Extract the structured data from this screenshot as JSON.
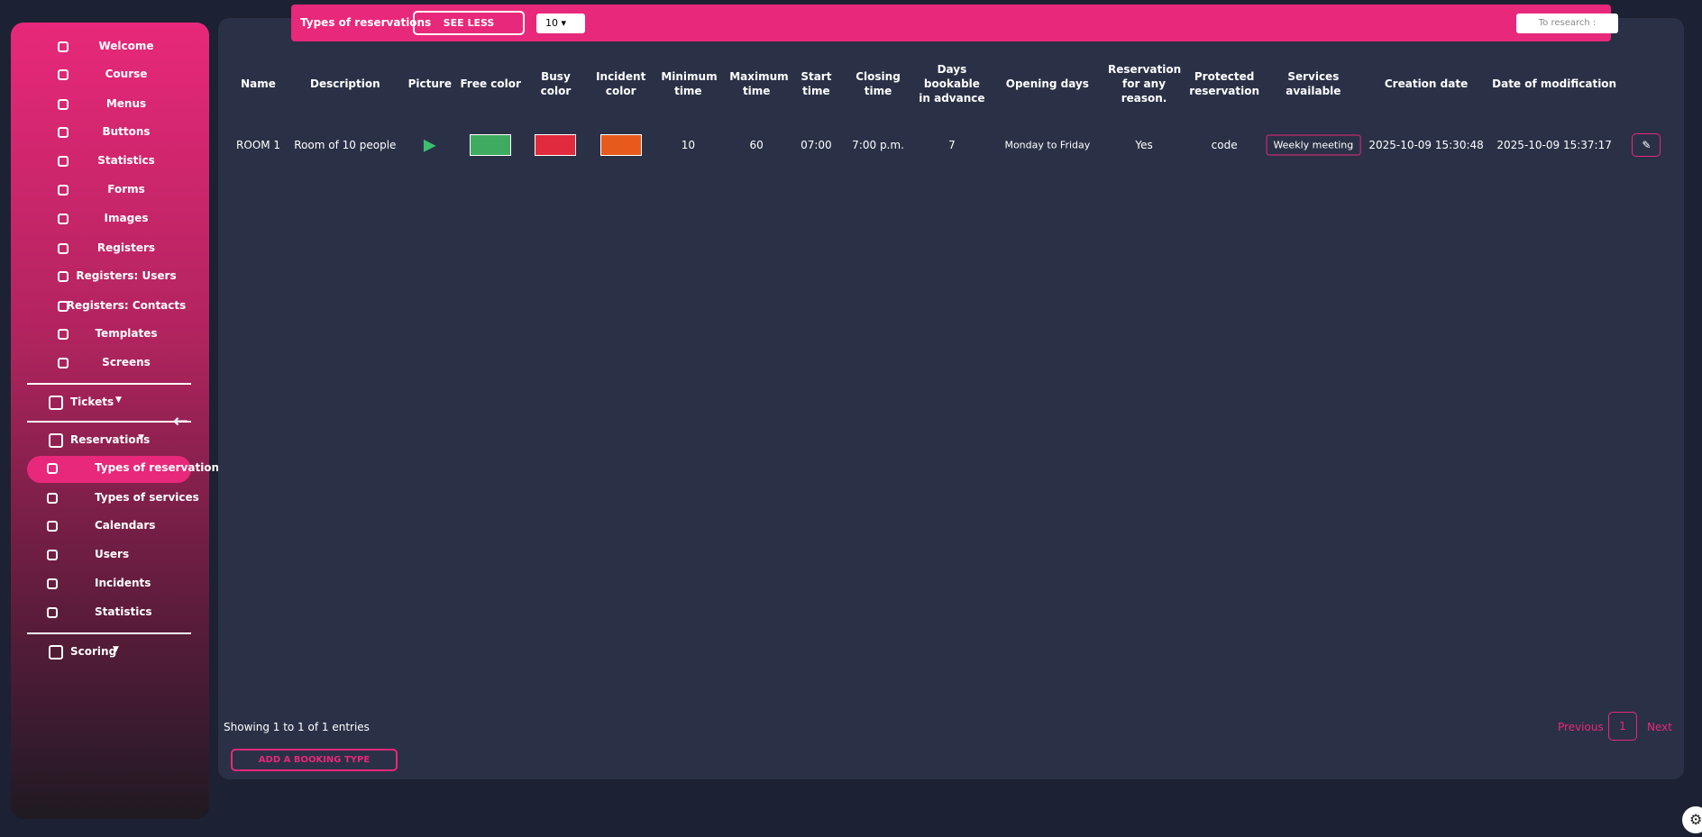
{
  "sidebar": {
    "items": [
      "Welcome",
      "Course",
      "Menus",
      "Buttons",
      "Statistics",
      "Forms",
      "Images",
      "Registers",
      "Registers: Users",
      "Registers: Contacts",
      "Templates",
      "Screens"
    ],
    "tickets": "Tickets",
    "reservations": "Reservations",
    "reservation_items": [
      "Types of reservations",
      "Types of services",
      "Calendars",
      "Users",
      "Incidents",
      "Statistics"
    ],
    "scoring": "Scoring"
  },
  "toolbar": {
    "title": "Types of reservations",
    "toggle": "SEE LESS",
    "page_size": "10",
    "search_placeholder": "To research :"
  },
  "table": {
    "headers": [
      "Name",
      "Description",
      "Picture",
      "Free color",
      "Busy color",
      "Incident color",
      "Minimum time",
      "Maximum time",
      "Start time",
      "Closing time",
      "Days bookable in advance",
      "Opening days",
      "Reservation for any reason.",
      "Protected reservation",
      "Services available",
      "Creation date",
      "Date of modification"
    ],
    "rows": [
      {
        "name": "ROOM 1",
        "description": "Room of 10 people",
        "minimum_time": 10,
        "maximum_time": 60,
        "start_time": "07:00",
        "closing_time": "7:00 p.m.",
        "days_in_advance": 7,
        "opening_days": "Monday to Friday",
        "any_reason": "Yes",
        "protected": "code",
        "services": "Weekly meeting",
        "created": "2025-10-09 15:30:48",
        "modified": "2025-10-09 15:37:17"
      }
    ]
  },
  "footer": {
    "info": "Showing 1 to 1 of 1 entries",
    "previous": "Previous",
    "page": "1",
    "next": "Next",
    "add": "ADD A BOOKING TYPE"
  }
}
